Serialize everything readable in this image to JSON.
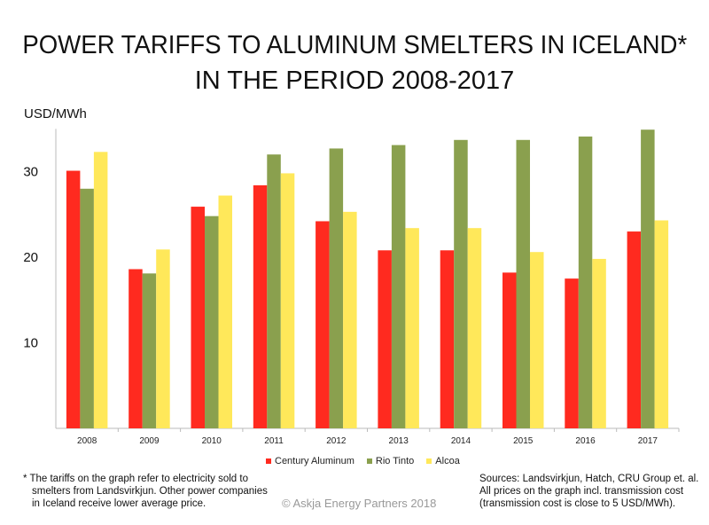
{
  "chart_data": {
    "type": "bar",
    "title": "POWER TARIFFS TO ALUMINUM SMELTERS IN ICELAND*",
    "subtitle": "IN THE PERIOD 2008-2017",
    "ylabel": "USD/MWh",
    "xlabel": "",
    "ylim": [
      0,
      35
    ],
    "yticks": [
      10,
      20,
      30
    ],
    "grid": false,
    "legend": "bottom",
    "categories": [
      "2008",
      "2009",
      "2010",
      "2011",
      "2012",
      "2013",
      "2014",
      "2015",
      "2016",
      "2017"
    ],
    "series": [
      {
        "name": "Century Aluminum",
        "color": "#ff2a1f",
        "values": [
          30.1,
          18.6,
          25.9,
          28.4,
          24.2,
          20.8,
          20.8,
          18.2,
          17.5,
          23.0
        ]
      },
      {
        "name": "Rio Tinto",
        "color": "#8aa04e",
        "values": [
          28.0,
          18.1,
          24.8,
          32.0,
          32.7,
          33.1,
          33.7,
          33.7,
          34.1,
          34.9
        ]
      },
      {
        "name": "Alcoa",
        "color": "#ffe85a",
        "values": [
          32.3,
          20.9,
          27.2,
          29.8,
          25.3,
          23.4,
          23.4,
          20.6,
          19.8,
          24.3
        ]
      }
    ]
  },
  "footnote": [
    "*  The tariffs on the graph refer to electricity sold to",
    "smelters from Landsvirkjun. Other power companies",
    "in Iceland receive lower average price."
  ],
  "sources": [
    "Sources: Landsvirkjun, Hatch, CRU Group et. al.",
    "All prices on the graph incl. transmission cost",
    "(transmission cost is close to 5 USD/MWh)."
  ],
  "copyright": "© Askja Energy Partners 2018"
}
